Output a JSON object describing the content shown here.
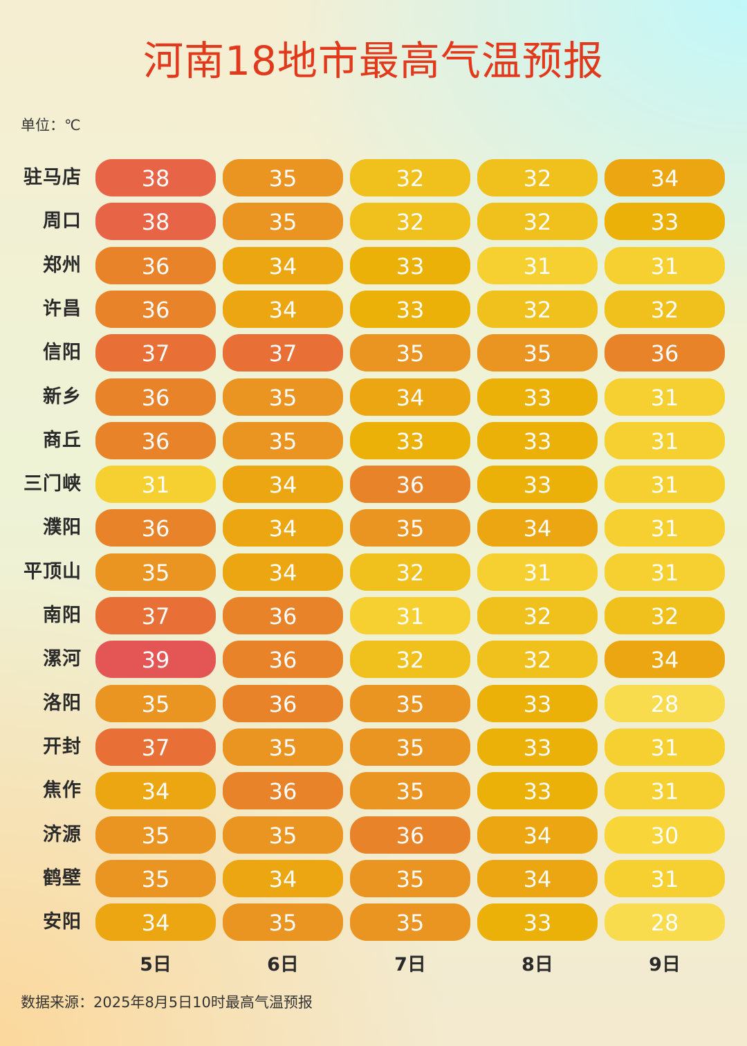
{
  "header": {
    "title": "河南18地市最高气温预报",
    "unit": "单位：℃"
  },
  "footer": {
    "source": "数据来源：2025年8月5日10时最高气温预报"
  },
  "colors": {
    "title": "#e2391c",
    "28": "#f9db4e",
    "30": "#f8d63a",
    "31": "#f6d030",
    "32": "#f0c01c",
    "33": "#ebb108",
    "34": "#eba612",
    "35": "#ea9422",
    "36": "#e8832a",
    "37": "#e86f36",
    "38": "#e86446",
    "39": "#e45656"
  },
  "chart_data": {
    "type": "heatmap",
    "title": "河南18地市最高气温预报",
    "unit": "单位：℃",
    "x": [
      "5日",
      "6日",
      "7日",
      "8日",
      "9日"
    ],
    "y": [
      "驻马店",
      "周口",
      "郑州",
      "许昌",
      "信阳",
      "新乡",
      "商丘",
      "三门峡",
      "濮阳",
      "平顶山",
      "南阳",
      "漯河",
      "洛阳",
      "开封",
      "焦作",
      "济源",
      "鹤壁",
      "安阳"
    ],
    "values": [
      [
        38,
        35,
        32,
        32,
        34
      ],
      [
        38,
        35,
        32,
        32,
        33
      ],
      [
        36,
        34,
        33,
        31,
        31
      ],
      [
        36,
        34,
        33,
        32,
        32
      ],
      [
        37,
        37,
        35,
        35,
        36
      ],
      [
        36,
        35,
        34,
        33,
        31
      ],
      [
        36,
        35,
        33,
        33,
        31
      ],
      [
        31,
        34,
        36,
        33,
        31
      ],
      [
        36,
        34,
        35,
        34,
        31
      ],
      [
        35,
        34,
        32,
        31,
        31
      ],
      [
        37,
        36,
        31,
        32,
        32
      ],
      [
        39,
        36,
        32,
        32,
        34
      ],
      [
        35,
        36,
        35,
        33,
        28
      ],
      [
        37,
        35,
        35,
        33,
        31
      ],
      [
        34,
        36,
        35,
        33,
        31
      ],
      [
        35,
        35,
        36,
        34,
        30
      ],
      [
        35,
        34,
        35,
        34,
        31
      ],
      [
        34,
        35,
        35,
        33,
        28
      ]
    ],
    "source": "数据来源：2025年8月5日10时最高气温预报"
  }
}
